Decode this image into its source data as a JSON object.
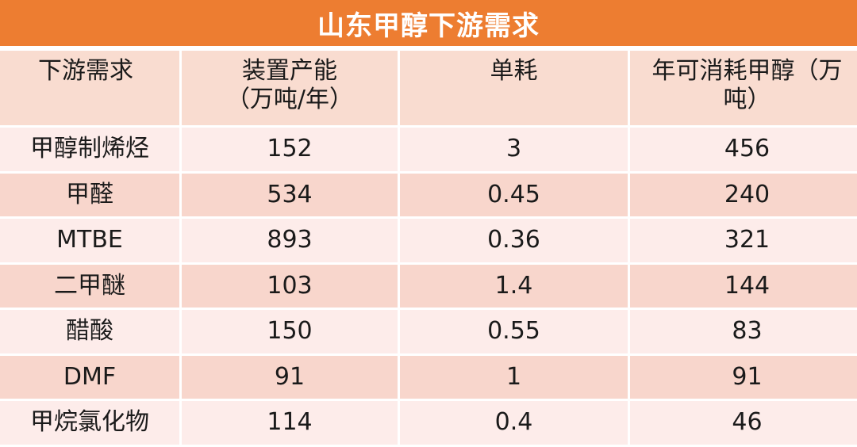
{
  "title": "山东甲醇下游需求",
  "headers": {
    "demand": "下游需求",
    "capacity_line1": "装置产能",
    "capacity_line2": "（万吨/年）",
    "consumption": "单耗",
    "annual_line1": "年可消耗甲醇（万",
    "annual_line2": "吨）"
  },
  "rows": [
    {
      "demand": "甲醇制烯烃",
      "capacity": "152",
      "consumption": "3",
      "annual": "456"
    },
    {
      "demand": "甲醛",
      "capacity": "534",
      "consumption": "0.45",
      "annual": "240"
    },
    {
      "demand": "MTBE",
      "capacity": "893",
      "consumption": "0.36",
      "annual": "321"
    },
    {
      "demand": "二甲醚",
      "capacity": "103",
      "consumption": "1.4",
      "annual": "144"
    },
    {
      "demand": "醋酸",
      "capacity": "150",
      "consumption": "0.55",
      "annual": "83"
    },
    {
      "demand": "DMF",
      "capacity": "91",
      "consumption": "1",
      "annual": "91"
    },
    {
      "demand": "甲烷氯化物",
      "capacity": "114",
      "consumption": "0.4",
      "annual": "46"
    }
  ],
  "colors": {
    "title_bg": "#ed7d31",
    "header_bg": "#f9dcd0",
    "row_light": "#fdecea",
    "row_dark": "#f8d6cc"
  }
}
